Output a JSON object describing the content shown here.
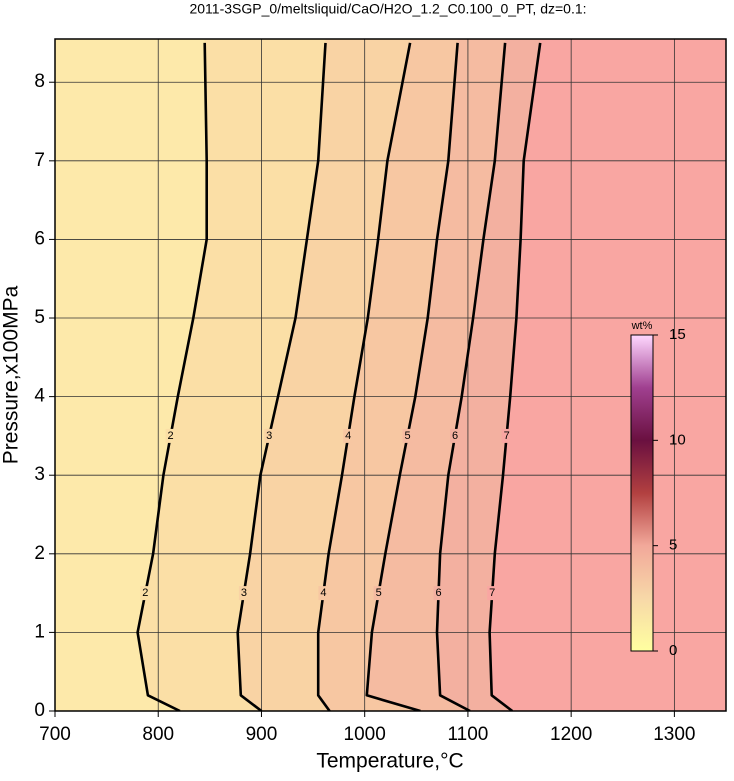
{
  "chart_data": {
    "type": "contour",
    "title": "2011-3SGP_0/meltsliquid/CaO/H2O_1.2_C0.100_0_PT, dz=0.1:",
    "x_label": "Temperature,°C",
    "y_label": "Pressure,x100MPa",
    "xlim": [
      700,
      1350
    ],
    "ylim": [
      0,
      8.55
    ],
    "xticks": [
      700,
      800,
      900,
      1000,
      1100,
      1200,
      1300
    ],
    "yticks": [
      0,
      1,
      2,
      3,
      4,
      5,
      6,
      7,
      8
    ],
    "grid": true,
    "background_color": "#fde9aa",
    "contours": [
      {
        "level": 2,
        "fill": "#fbdfa6",
        "x": [
          821,
          790,
          780,
          795,
          805,
          819,
          834,
          847,
          847,
          845
        ],
        "y": [
          0,
          0.2,
          1,
          2,
          3,
          4,
          5,
          6,
          7,
          8.5
        ]
      },
      {
        "level": 3,
        "fill": "#f9d3a4",
        "x": [
          900,
          880,
          877,
          889,
          899,
          916,
          933,
          944,
          955,
          962
        ],
        "y": [
          0,
          0.2,
          1,
          2,
          3,
          4,
          5,
          6,
          7,
          8.5
        ]
      },
      {
        "level": 4,
        "fill": "#f7c7a2",
        "x": [
          966,
          955,
          955,
          965,
          978,
          990,
          1003,
          1013,
          1022,
          1044
        ],
        "y": [
          0,
          0.2,
          1,
          2,
          3,
          4,
          5,
          6,
          7,
          8.5
        ]
      },
      {
        "level": 5,
        "fill": "#f5bba1",
        "x": [
          1054,
          1002,
          1007,
          1020,
          1034,
          1049,
          1061,
          1070,
          1081,
          1090
        ],
        "y": [
          0,
          0.2,
          1,
          2,
          3,
          4,
          5,
          6,
          7,
          8.5
        ]
      },
      {
        "level": 6,
        "fill": "#f3b0a0",
        "x": [
          1102,
          1073,
          1070,
          1073,
          1081,
          1094,
          1105,
          1115,
          1126,
          1136
        ],
        "y": [
          0,
          0.2,
          1,
          2,
          3,
          4,
          5,
          6,
          7,
          8.5
        ]
      },
      {
        "level": 7,
        "fill": "#f9a6a2",
        "x": [
          1143,
          1123,
          1121,
          1126,
          1134,
          1141,
          1147,
          1151,
          1154,
          1170
        ],
        "y": [
          0,
          0.2,
          1,
          2,
          3,
          4,
          5,
          6,
          7,
          8.5
        ]
      }
    ],
    "colorbar": {
      "label": "wt%",
      "lim": [
        0,
        15
      ],
      "ticks": [
        0,
        5,
        10,
        15
      ],
      "colors": [
        "#ffffa0",
        "#f7d8a8",
        "#f2a89a",
        "#b24040",
        "#6a1040",
        "#a04090",
        "#ffd8ff"
      ]
    }
  }
}
